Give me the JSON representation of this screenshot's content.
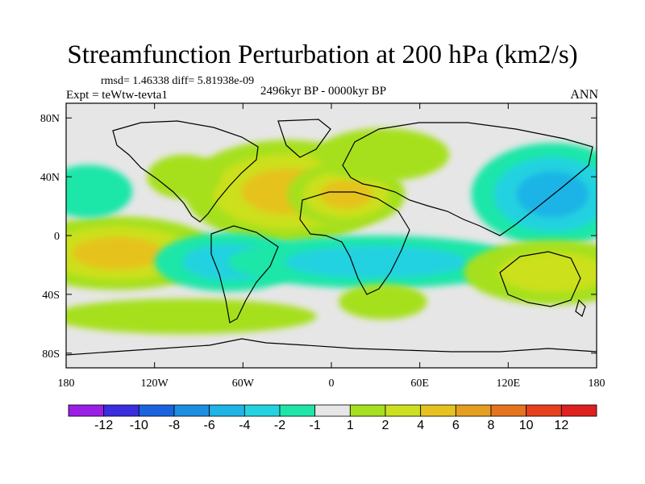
{
  "chart_data": {
    "type": "heatmap",
    "title": "Streamfunction Perturbation at 200 hPa (km2/s)",
    "stats_text": "rmsd= 1.46338 diff= 5.81938e-09",
    "experiment_text": "Expt = teWtw-tevta1",
    "period_text": "2496kyr BP - 0000kyr BP",
    "season_text": "ANN",
    "x_range": [
      -180,
      180
    ],
    "y_range": [
      -90,
      90
    ],
    "x_ticks": [
      {
        "value": -180,
        "label": "180"
      },
      {
        "value": -120,
        "label": "120W"
      },
      {
        "value": -60,
        "label": "60W"
      },
      {
        "value": 0,
        "label": "0"
      },
      {
        "value": 60,
        "label": "60E"
      },
      {
        "value": 120,
        "label": "120E"
      },
      {
        "value": 180,
        "label": "180"
      }
    ],
    "y_ticks": [
      {
        "value": 80,
        "label": "80N"
      },
      {
        "value": 40,
        "label": "40N"
      },
      {
        "value": 0,
        "label": "0"
      },
      {
        "value": -40,
        "label": "40S"
      },
      {
        "value": -80,
        "label": "80S"
      }
    ],
    "colorbar": {
      "colors": [
        "#9b1fe6",
        "#3a2ee0",
        "#1a63e0",
        "#1d8fe0",
        "#1fb4e6",
        "#23d2e0",
        "#1fe6a8",
        "#e6e6e6",
        "#a6e01f",
        "#cce01f",
        "#e6c21f",
        "#e69e1f",
        "#e6741f",
        "#e6401f",
        "#e01f1f"
      ],
      "labels": [
        "-12",
        "-10",
        "-8",
        "-6",
        "-4",
        "-2",
        "-1",
        "1",
        "2",
        "4",
        "6",
        "8",
        "10",
        "12"
      ]
    },
    "background_color": "#e6e6e6",
    "anomalies": [
      {
        "lon": -145,
        "lat": -12,
        "level": 6,
        "size_lon": 70,
        "size_lat": 25
      },
      {
        "lon": -30,
        "lat": 30,
        "level": 6,
        "size_lon": 70,
        "size_lat": 35
      },
      {
        "lon": 10,
        "lat": 28,
        "level": 6,
        "size_lon": 40,
        "size_lat": 22
      },
      {
        "lon": 150,
        "lat": 28,
        "level": -6,
        "size_lon": 55,
        "size_lat": 35
      },
      {
        "lon": -165,
        "lat": 30,
        "level": -2,
        "size_lon": 30,
        "size_lat": 18
      },
      {
        "lon": -70,
        "lat": -18,
        "level": -4,
        "size_lon": 50,
        "size_lat": 20
      },
      {
        "lon": 30,
        "lat": -18,
        "level": -4,
        "size_lon": 100,
        "size_lat": 18
      },
      {
        "lon": 150,
        "lat": -25,
        "level": 4,
        "size_lon": 60,
        "size_lat": 22
      },
      {
        "lon": 35,
        "lat": 55,
        "level": 2,
        "size_lon": 45,
        "size_lat": 18
      },
      {
        "lon": -100,
        "lat": -55,
        "level": 2,
        "size_lon": 90,
        "size_lat": 12
      },
      {
        "lon": 35,
        "lat": -45,
        "level": 2,
        "size_lon": 30,
        "size_lat": 12
      },
      {
        "lon": -100,
        "lat": 40,
        "level": 2,
        "size_lon": 25,
        "size_lat": 15
      }
    ]
  }
}
